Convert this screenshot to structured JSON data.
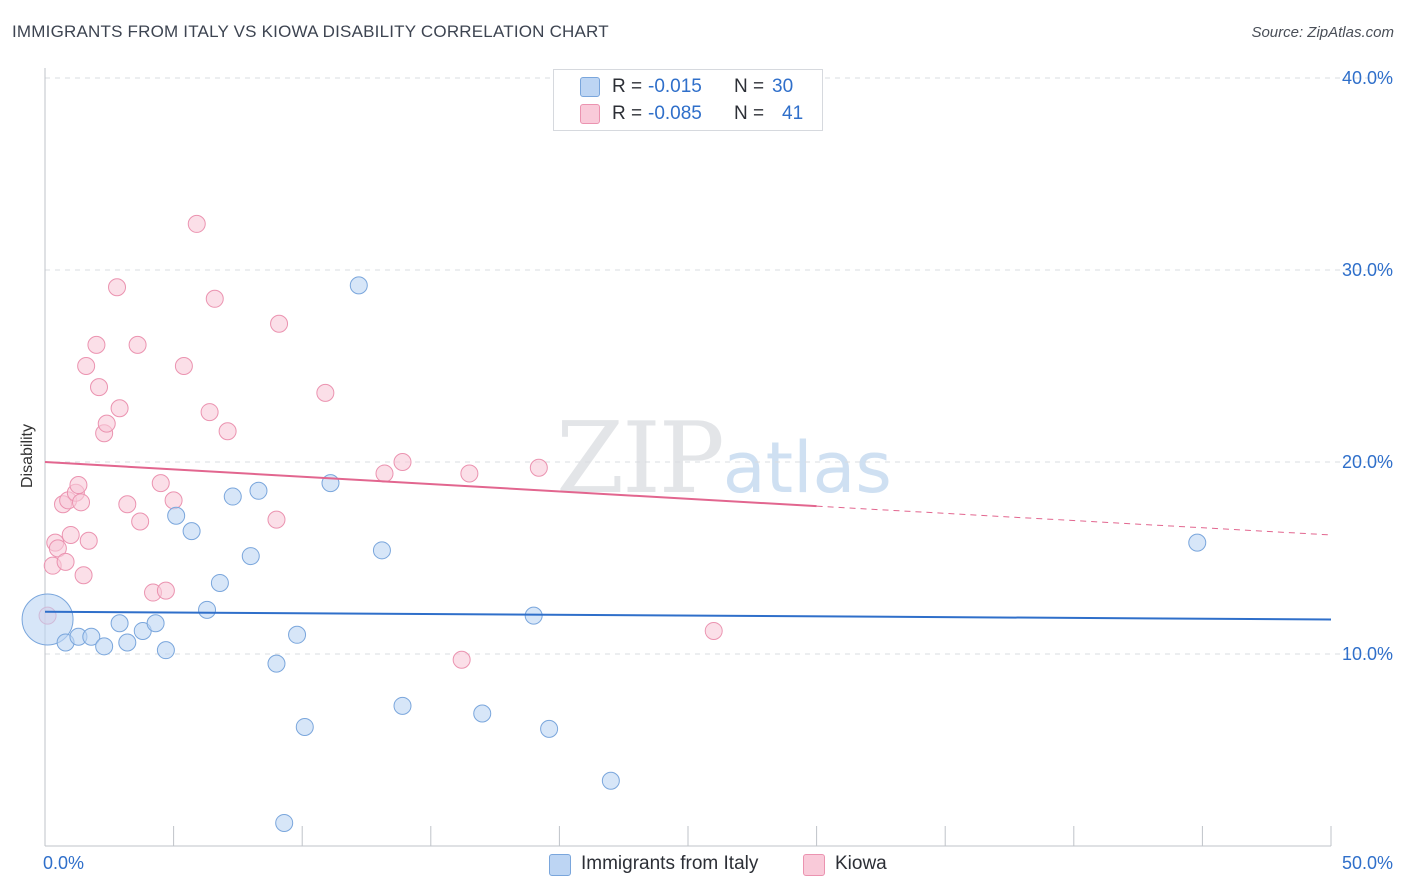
{
  "title": "IMMIGRANTS FROM ITALY VS KIOWA DISABILITY CORRELATION CHART",
  "source": "Source: ZipAtlas.com",
  "watermark": {
    "zip": "ZIP",
    "atlas": "atlas"
  },
  "legend": {
    "series1": {
      "r_label": "R =",
      "r_value": "-0.015",
      "n_label": "N =",
      "n_value": "30",
      "name": "Immigrants from Italy"
    },
    "series2": {
      "r_label": "R =",
      "r_value": "-0.085",
      "n_label": "N =",
      "n_value": "41",
      "name": "Kiowa"
    }
  },
  "colors": {
    "blue_fill": "#bdd5f3",
    "blue_stroke": "#7aa6dc",
    "blue_line": "#2f6fca",
    "pink_fill": "#f9cad9",
    "pink_stroke": "#eb93b0",
    "pink_line": "#e2668f",
    "axis_text": "#2f6fca",
    "grid": "#d9dce0"
  },
  "chart_data": {
    "type": "scatter",
    "title": "IMMIGRANTS FROM ITALY VS KIOWA DISABILITY CORRELATION CHART",
    "xlabel": "",
    "ylabel": "Disability",
    "xlim": [
      0,
      50
    ],
    "ylim": [
      0,
      40
    ],
    "x_tick_labels": [
      "0.0%",
      "50.0%"
    ],
    "y_ticks": [
      10,
      20,
      30,
      40
    ],
    "y_tick_labels": [
      "10.0%",
      "20.0%",
      "30.0%",
      "40.0%"
    ],
    "series": [
      {
        "name": "Immigrants from Italy",
        "trend": {
          "x0": 0,
          "y0": 12.2,
          "x1": 50,
          "y1": 11.8
        },
        "points": [
          [
            0.1,
            11.8,
            30
          ],
          [
            0.8,
            10.6,
            10
          ],
          [
            1.3,
            10.9,
            10
          ],
          [
            1.8,
            10.9,
            10
          ],
          [
            2.3,
            10.4,
            10
          ],
          [
            2.9,
            11.6,
            10
          ],
          [
            3.2,
            10.6,
            10
          ],
          [
            3.8,
            11.2,
            10
          ],
          [
            4.3,
            11.6,
            10
          ],
          [
            4.7,
            10.2,
            10
          ],
          [
            5.1,
            17.2,
            10
          ],
          [
            5.7,
            16.4,
            10
          ],
          [
            6.3,
            12.3,
            10
          ],
          [
            6.8,
            13.7,
            10
          ],
          [
            7.3,
            18.2,
            10
          ],
          [
            8.0,
            15.1,
            10
          ],
          [
            8.3,
            18.5,
            10
          ],
          [
            9.0,
            9.5,
            10
          ],
          [
            9.3,
            1.2,
            10
          ],
          [
            9.8,
            11.0,
            10
          ],
          [
            10.1,
            6.2,
            10
          ],
          [
            11.1,
            18.9,
            10
          ],
          [
            12.2,
            29.2,
            10
          ],
          [
            13.1,
            15.4,
            10
          ],
          [
            13.9,
            7.3,
            10
          ],
          [
            17.0,
            6.9,
            10
          ],
          [
            19.0,
            12.0,
            10
          ],
          [
            19.6,
            6.1,
            10
          ],
          [
            22.0,
            3.4,
            10
          ],
          [
            44.8,
            15.8,
            10
          ]
        ]
      },
      {
        "name": "Kiowa",
        "trend": {
          "x0": 0,
          "y0": 20.0,
          "x1": 30,
          "y1": 17.7,
          "dash_x1": 50,
          "dash_y1": 16.2
        },
        "points": [
          [
            0.1,
            12.0,
            10
          ],
          [
            0.3,
            14.6,
            10
          ],
          [
            0.4,
            15.8,
            10
          ],
          [
            0.5,
            15.5,
            10
          ],
          [
            0.7,
            17.8,
            10
          ],
          [
            0.8,
            14.8,
            10
          ],
          [
            0.9,
            18.0,
            10
          ],
          [
            1.0,
            16.2,
            10
          ],
          [
            1.2,
            18.4,
            10
          ],
          [
            1.3,
            18.8,
            10
          ],
          [
            1.4,
            17.9,
            10
          ],
          [
            1.5,
            14.1,
            10
          ],
          [
            1.6,
            25.0,
            10
          ],
          [
            1.7,
            15.9,
            10
          ],
          [
            2.0,
            26.1,
            10
          ],
          [
            2.1,
            23.9,
            10
          ],
          [
            2.3,
            21.5,
            10
          ],
          [
            2.4,
            22.0,
            10
          ],
          [
            2.8,
            29.1,
            10
          ],
          [
            2.9,
            22.8,
            10
          ],
          [
            3.2,
            17.8,
            10
          ],
          [
            3.6,
            26.1,
            10
          ],
          [
            3.7,
            16.9,
            10
          ],
          [
            4.2,
            13.2,
            10
          ],
          [
            4.5,
            18.9,
            10
          ],
          [
            4.7,
            13.3,
            10
          ],
          [
            5.0,
            18.0,
            10
          ],
          [
            5.4,
            25.0,
            10
          ],
          [
            5.9,
            32.4,
            10
          ],
          [
            6.4,
            22.6,
            10
          ],
          [
            6.6,
            28.5,
            10
          ],
          [
            7.1,
            21.6,
            10
          ],
          [
            9.0,
            17.0,
            10
          ],
          [
            9.1,
            27.2,
            10
          ],
          [
            10.9,
            23.6,
            10
          ],
          [
            13.2,
            19.4,
            10
          ],
          [
            13.9,
            20.0,
            10
          ],
          [
            16.5,
            19.4,
            10
          ],
          [
            16.2,
            9.7,
            10
          ],
          [
            19.2,
            19.7,
            10
          ],
          [
            26.0,
            11.2,
            10
          ]
        ]
      }
    ]
  }
}
